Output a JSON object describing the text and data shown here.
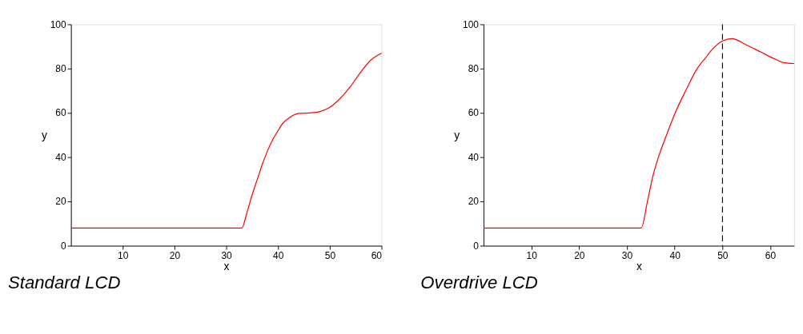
{
  "chart_data": [
    {
      "type": "line",
      "title": "Standard LCD",
      "xlabel": "x",
      "ylabel": "y",
      "xlim": [
        0,
        60
      ],
      "ylim": [
        0,
        100
      ],
      "xticks": [
        10,
        20,
        30,
        40,
        50,
        60
      ],
      "yticks": [
        0,
        20,
        40,
        60,
        80,
        100
      ],
      "grid": false,
      "marker": "none",
      "line_style": "solid",
      "series": [
        {
          "color": "#ff0000",
          "x": [
            0,
            10,
            20,
            30,
            33,
            34,
            35,
            36,
            37,
            38,
            39,
            40,
            41,
            42,
            43,
            44,
            46,
            48,
            50,
            52,
            54,
            56,
            58,
            60
          ],
          "values": [
            8,
            8,
            8,
            8,
            8,
            15,
            23,
            30,
            37,
            43,
            48,
            52,
            55.5,
            57.5,
            59,
            59.8,
            60,
            60.5,
            62.5,
            66.5,
            72,
            78.5,
            84,
            87
          ]
        }
      ]
    },
    {
      "type": "line",
      "title": "Overdrive LCD",
      "xlabel": "x",
      "ylabel": "y",
      "xlim": [
        0,
        65
      ],
      "ylim": [
        0,
        100
      ],
      "xticks": [
        10,
        20,
        30,
        40,
        50,
        60
      ],
      "yticks": [
        0,
        20,
        40,
        60,
        80,
        100
      ],
      "grid": false,
      "marker": "none",
      "line_style": "solid",
      "ref_lines": [
        {
          "axis": "x",
          "value": 50,
          "color": "#000000",
          "line_style": "dashed"
        }
      ],
      "series": [
        {
          "color": "#ff0000",
          "x": [
            0,
            10,
            20,
            30,
            33,
            34.3,
            35.5,
            36.6,
            38.3,
            40.1,
            42.3,
            44.7,
            46.5,
            48,
            50,
            52,
            55,
            58,
            61,
            63,
            65
          ],
          "values": [
            8,
            8,
            8,
            8,
            8,
            20,
            32,
            40,
            50,
            60,
            70,
            80,
            85,
            89,
            92.5,
            93.5,
            90.7,
            87.5,
            84.3,
            82.6,
            82.3
          ]
        }
      ]
    }
  ]
}
